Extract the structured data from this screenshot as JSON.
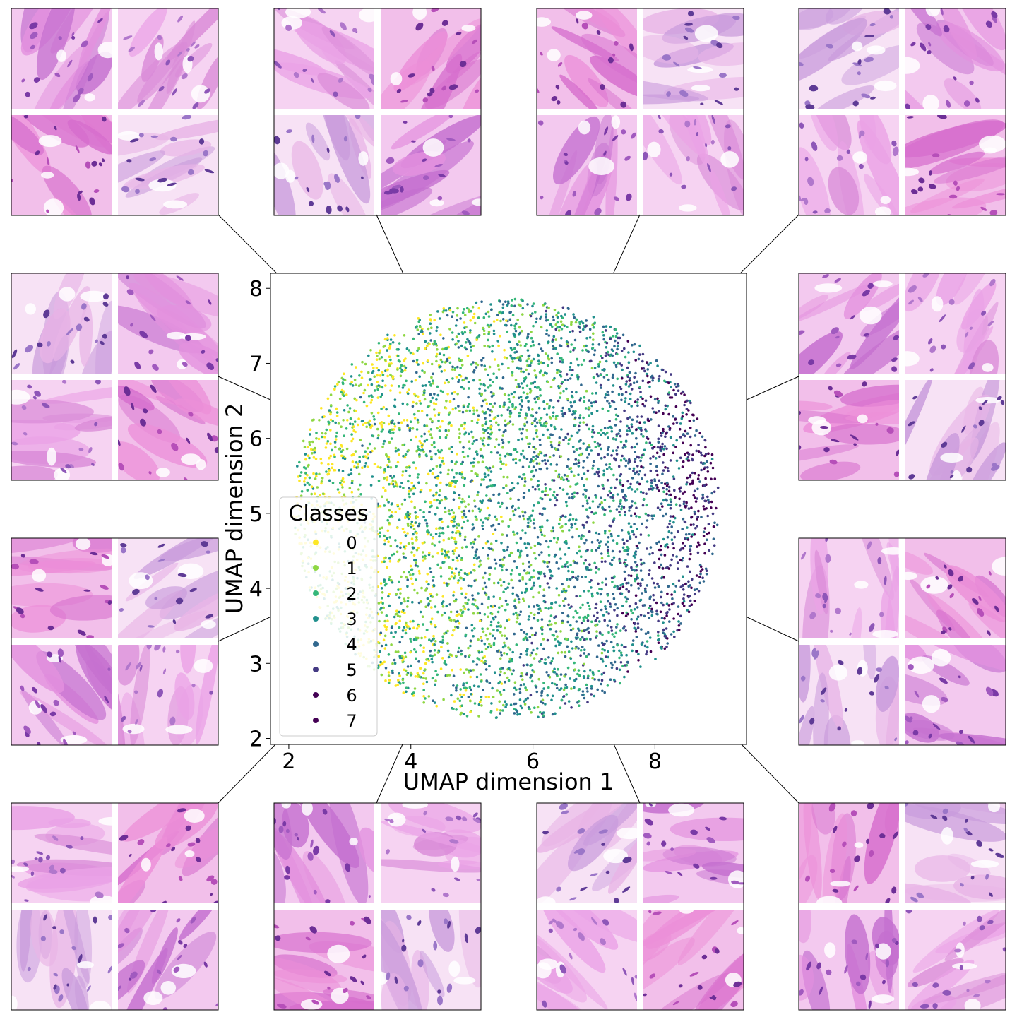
{
  "chart_data": {
    "type": "scatter",
    "xlabel": "UMAP dimension 1",
    "ylabel": "UMAP dimension 2",
    "xlim": [
      1.7,
      9.5
    ],
    "ylim": [
      1.92,
      8.2
    ],
    "xticks": [
      2,
      4,
      6,
      8
    ],
    "yticks": [
      2,
      3,
      4,
      5,
      6,
      7,
      8
    ],
    "grid": false,
    "legend": {
      "title": "Classes",
      "placement": "lower-left",
      "entries": [
        "0",
        "1",
        "2",
        "3",
        "4",
        "5",
        "6",
        "7"
      ]
    },
    "series": [
      {
        "name": "0",
        "color": "#fde725"
      },
      {
        "name": "1",
        "color": "#8fd744"
      },
      {
        "name": "2",
        "color": "#35b779"
      },
      {
        "name": "3",
        "color": "#21908d"
      },
      {
        "name": "4",
        "color": "#31688e"
      },
      {
        "name": "5",
        "color": "#443a83"
      },
      {
        "name": "6",
        "color": "#440154"
      },
      {
        "name": "7",
        "color": "#440154"
      }
    ],
    "cloud": {
      "center": [
        5.6,
        5.1
      ],
      "x_range": [
        2.0,
        9.1
      ],
      "y_range": [
        2.2,
        7.9
      ],
      "point_count": 5000,
      "note_class_gradient": "higher classes concentrate toward the right edge"
    },
    "link_target": [
      5.6,
      5.1
    ],
    "thumbnail_grids": [
      {
        "id": "top-1",
        "depiction": "pink stromal tissue patches"
      },
      {
        "id": "top-2",
        "depiction": "purple cellular tissue patches"
      },
      {
        "id": "top-3",
        "depiction": "mixed stroma and tumor patches"
      },
      {
        "id": "top-4",
        "depiction": "glandular tumor patches"
      },
      {
        "id": "right-1",
        "depiction": "fibrous stroma patches"
      },
      {
        "id": "right-2",
        "depiction": "stroma and dense tumor nests"
      },
      {
        "id": "bottom-4",
        "depiction": "dense cellular tumor patches"
      },
      {
        "id": "bottom-3",
        "depiction": "tumor and fibrous patches"
      },
      {
        "id": "bottom-2",
        "depiction": "mixed purple tissue patches"
      },
      {
        "id": "bottom-1",
        "depiction": "cellular stroma patches"
      },
      {
        "id": "left-3",
        "depiction": "bright pink collagen patches"
      },
      {
        "id": "left-2",
        "depiction": "tumor nest patches"
      }
    ]
  }
}
